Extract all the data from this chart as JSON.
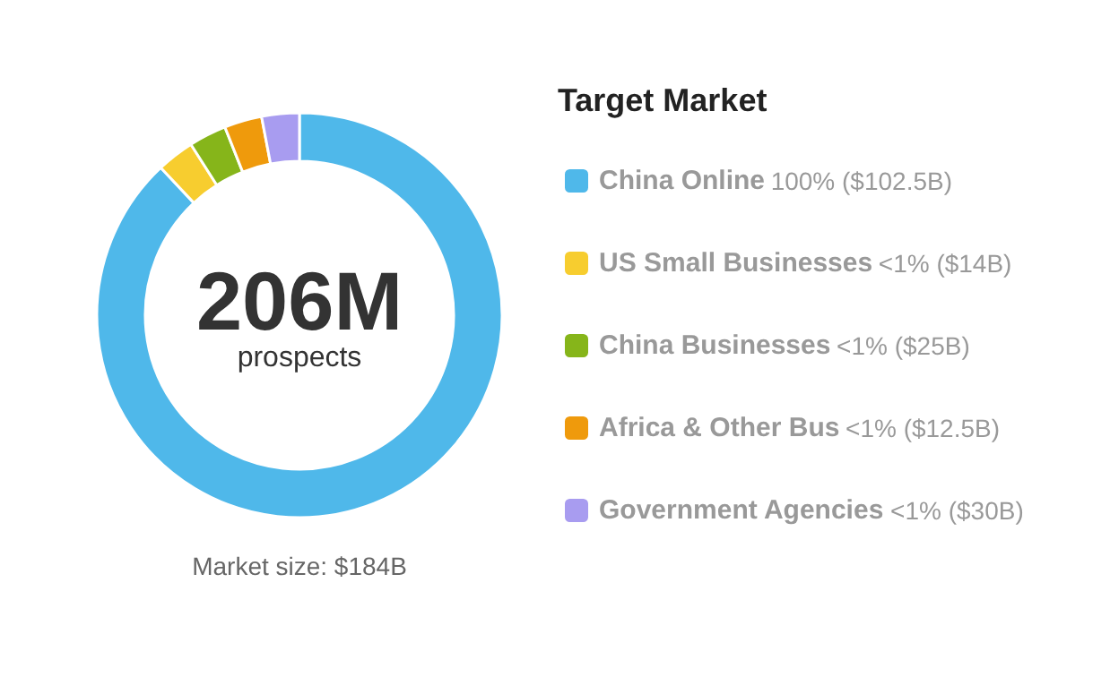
{
  "chart_data": {
    "type": "donut",
    "legend_title": "Target Market",
    "categories": [
      "China Online",
      "US Small Businesses",
      "China Businesses",
      "Africa & Other Bus",
      "Government Agencies"
    ],
    "values": [
      88,
      3,
      3,
      3,
      3
    ],
    "colors": [
      "#4fb8ea",
      "#f7cd2f",
      "#86b51a",
      "#ef9a0c",
      "#a89cf0"
    ],
    "annotations": [
      "206M",
      "prospects",
      "Market size: $184B",
      "100% ($102.5B)",
      "<1% ($14B)",
      "<1% ($25B)",
      "<1% ($12.5B)",
      "<1% ($30B)"
    ],
    "legend": "right"
  }
}
